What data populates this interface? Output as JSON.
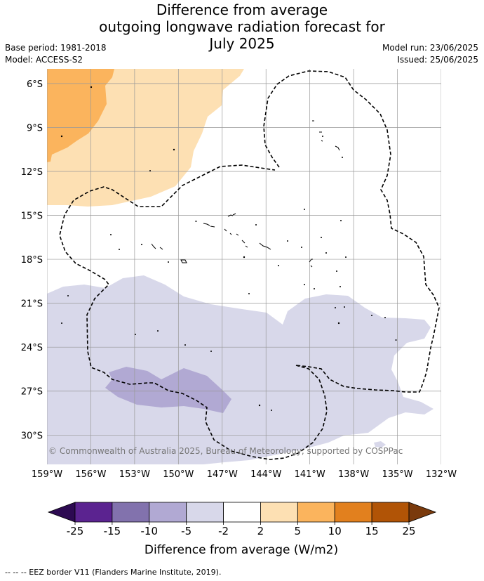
{
  "title_lines": [
    "Difference from average",
    "outgoing longwave radiation forecast for",
    "July 2025"
  ],
  "meta": {
    "base_period": "Base period: 1981-2018",
    "model": "Model: ACCESS-S2",
    "model_run": "Model run: 23/06/2025",
    "issued": "Issued: 25/06/2025"
  },
  "map": {
    "lon_range": [
      "159°W",
      "132°W"
    ],
    "lat_range": [
      "5°S",
      "32°S"
    ],
    "lat_labels": [
      "6°S",
      "9°S",
      "12°S",
      "15°S",
      "18°S",
      "21°S",
      "24°S",
      "27°S",
      "30°S"
    ],
    "lon_labels": [
      "159°W",
      "156°W",
      "153°W",
      "150°W",
      "147°W",
      "144°W",
      "141°W",
      "138°W",
      "135°W",
      "132°W"
    ],
    "grid": true,
    "copyright": "© Commonwealth of Australia 2025, Bureau of Meteorology, supported by COSPPac"
  },
  "colorbar": {
    "ticks": [
      "-25",
      "-15",
      "-10",
      "-5",
      "-2",
      "2",
      "5",
      "10",
      "15",
      "25"
    ],
    "colors": [
      "#2d0a52",
      "#5b2390",
      "#8272ad",
      "#b1a9d3",
      "#d8d8ea",
      "#ffffff",
      "#fde0b3",
      "#fbb45d",
      "#e2801e",
      "#b15406",
      "#7a3a0c"
    ],
    "title": "Difference from average (W/m2)"
  },
  "footnote": "--  --  -- EEZ border V11 (Flanders Marine Institute, 2019)."
}
